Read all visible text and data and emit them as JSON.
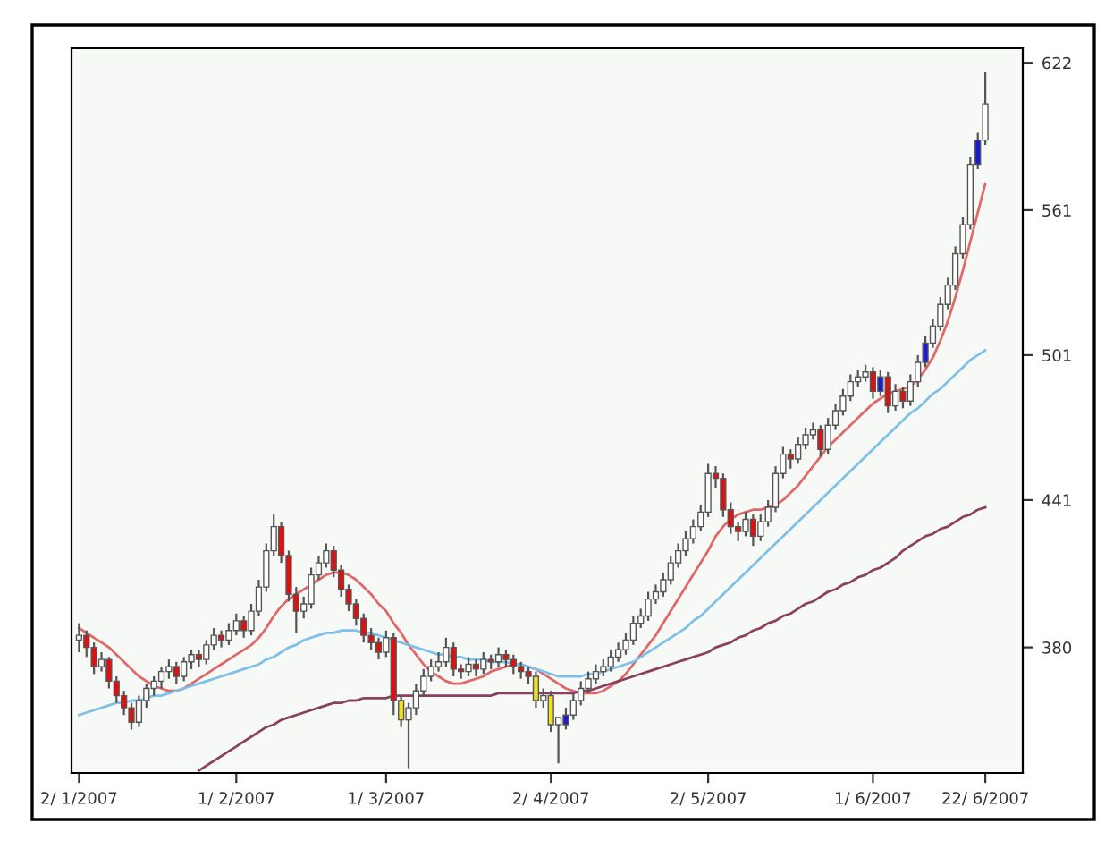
{
  "chart_data": {
    "type": "candlestick",
    "categories": [
      "2/ 1/2007",
      null,
      null,
      null,
      null,
      null,
      null,
      null,
      null,
      null,
      null,
      null,
      null,
      null,
      null,
      null,
      null,
      null,
      null,
      null,
      null,
      "1/ 2/2007",
      null,
      null,
      null,
      null,
      null,
      null,
      null,
      null,
      null,
      null,
      null,
      null,
      null,
      null,
      null,
      null,
      null,
      null,
      null,
      "1/ 3/2007",
      null,
      null,
      null,
      null,
      null,
      null,
      null,
      null,
      null,
      null,
      null,
      null,
      null,
      null,
      null,
      null,
      null,
      null,
      null,
      null,
      null,
      "2/ 4/2007",
      null,
      null,
      null,
      null,
      null,
      null,
      null,
      null,
      null,
      null,
      null,
      null,
      null,
      null,
      null,
      null,
      null,
      null,
      null,
      null,
      "2/ 5/2007",
      null,
      null,
      null,
      null,
      null,
      null,
      null,
      null,
      null,
      null,
      null,
      null,
      null,
      null,
      null,
      null,
      null,
      null,
      null,
      null,
      null,
      "1/ 6/2007",
      null,
      null,
      null,
      null,
      null,
      null,
      null,
      null,
      null,
      null,
      null,
      null,
      null,
      null,
      "22/ 6/2007"
    ],
    "ohlc": [
      [
        383,
        390,
        378,
        385
      ],
      [
        385,
        387,
        376,
        380
      ],
      [
        380,
        382,
        369,
        372
      ],
      [
        372,
        378,
        370,
        375
      ],
      [
        375,
        376,
        363,
        366
      ],
      [
        366,
        368,
        357,
        360
      ],
      [
        360,
        362,
        352,
        355
      ],
      [
        355,
        357,
        346,
        349
      ],
      [
        349,
        360,
        347,
        358
      ],
      [
        358,
        365,
        355,
        363
      ],
      [
        363,
        368,
        360,
        366
      ],
      [
        366,
        372,
        363,
        370
      ],
      [
        370,
        375,
        367,
        372
      ],
      [
        372,
        374,
        365,
        368
      ],
      [
        368,
        376,
        366,
        374
      ],
      [
        374,
        379,
        371,
        377
      ],
      [
        377,
        379,
        372,
        375
      ],
      [
        375,
        383,
        373,
        381
      ],
      [
        381,
        388,
        379,
        385
      ],
      [
        385,
        387,
        380,
        383
      ],
      [
        383,
        390,
        381,
        387
      ],
      [
        387,
        394,
        385,
        391
      ],
      [
        391,
        393,
        384,
        387
      ],
      [
        387,
        398,
        385,
        395
      ],
      [
        395,
        408,
        393,
        405
      ],
      [
        405,
        423,
        403,
        420
      ],
      [
        420,
        435,
        418,
        430
      ],
      [
        430,
        432,
        415,
        418
      ],
      [
        418,
        420,
        399,
        402
      ],
      [
        402,
        405,
        386,
        395
      ],
      [
        395,
        401,
        392,
        398
      ],
      [
        398,
        413,
        396,
        410
      ],
      [
        410,
        418,
        408,
        415
      ],
      [
        415,
        423,
        413,
        420
      ],
      [
        420,
        422,
        409,
        412
      ],
      [
        412,
        414,
        401,
        404
      ],
      [
        404,
        406,
        395,
        398
      ],
      [
        398,
        400,
        389,
        392
      ],
      [
        392,
        394,
        382,
        385
      ],
      [
        385,
        388,
        379,
        382
      ],
      [
        382,
        384,
        375,
        378
      ],
      [
        378,
        387,
        376,
        384
      ],
      [
        384,
        386,
        352,
        358
      ],
      [
        358,
        360,
        347,
        350
      ],
      [
        350,
        357,
        330,
        355
      ],
      [
        355,
        365,
        352,
        362
      ],
      [
        362,
        371,
        360,
        368
      ],
      [
        368,
        375,
        366,
        372
      ],
      [
        372,
        378,
        370,
        374
      ],
      [
        374,
        384,
        372,
        380
      ],
      [
        380,
        382,
        368,
        371
      ],
      [
        371,
        373,
        367,
        370
      ],
      [
        370,
        376,
        368,
        373
      ],
      [
        373,
        375,
        368,
        371
      ],
      [
        371,
        378,
        369,
        375
      ],
      [
        375,
        377,
        371,
        374
      ],
      [
        374,
        380,
        372,
        377
      ],
      [
        377,
        379,
        372,
        375
      ],
      [
        375,
        377,
        369,
        372
      ],
      [
        372,
        374,
        367,
        370
      ],
      [
        370,
        372,
        365,
        368
      ],
      [
        368,
        370,
        355,
        358
      ],
      [
        358,
        363,
        355,
        360
      ],
      [
        360,
        362,
        345,
        348
      ],
      [
        348,
        351,
        332,
        351
      ],
      [
        348,
        355,
        346,
        352
      ],
      [
        352,
        361,
        350,
        358
      ],
      [
        358,
        366,
        356,
        363
      ],
      [
        363,
        370,
        361,
        367
      ],
      [
        367,
        373,
        365,
        370
      ],
      [
        370,
        375,
        368,
        372
      ],
      [
        372,
        379,
        370,
        376
      ],
      [
        376,
        382,
        374,
        379
      ],
      [
        379,
        386,
        377,
        383
      ],
      [
        383,
        393,
        381,
        390
      ],
      [
        390,
        396,
        388,
        393
      ],
      [
        393,
        403,
        391,
        400
      ],
      [
        400,
        406,
        398,
        403
      ],
      [
        403,
        411,
        401,
        408
      ],
      [
        408,
        418,
        406,
        415
      ],
      [
        415,
        423,
        413,
        420
      ],
      [
        420,
        428,
        418,
        425
      ],
      [
        425,
        433,
        423,
        430
      ],
      [
        430,
        439,
        428,
        436
      ],
      [
        436,
        456,
        434,
        452
      ],
      [
        452,
        455,
        446,
        450
      ],
      [
        450,
        452,
        434,
        437
      ],
      [
        437,
        440,
        427,
        430
      ],
      [
        430,
        432,
        424,
        428
      ],
      [
        428,
        436,
        426,
        433
      ],
      [
        433,
        435,
        422,
        426
      ],
      [
        426,
        435,
        424,
        432
      ],
      [
        432,
        441,
        430,
        438
      ],
      [
        438,
        455,
        436,
        452
      ],
      [
        452,
        463,
        450,
        460
      ],
      [
        460,
        462,
        454,
        458
      ],
      [
        458,
        467,
        456,
        464
      ],
      [
        464,
        471,
        462,
        468
      ],
      [
        468,
        473,
        466,
        470
      ],
      [
        470,
        472,
        459,
        462
      ],
      [
        462,
        475,
        460,
        472
      ],
      [
        472,
        481,
        470,
        478
      ],
      [
        478,
        487,
        476,
        484
      ],
      [
        484,
        493,
        482,
        490
      ],
      [
        490,
        495,
        488,
        492
      ],
      [
        492,
        497,
        490,
        494
      ],
      [
        494,
        496,
        483,
        486
      ],
      [
        486,
        495,
        484,
        492
      ],
      [
        492,
        494,
        477,
        480
      ],
      [
        480,
        489,
        478,
        486
      ],
      [
        486,
        488,
        479,
        482
      ],
      [
        482,
        493,
        480,
        490
      ],
      [
        490,
        501,
        488,
        498
      ],
      [
        498,
        509,
        496,
        506
      ],
      [
        506,
        516,
        504,
        513
      ],
      [
        513,
        525,
        511,
        522
      ],
      [
        522,
        533,
        520,
        530
      ],
      [
        530,
        546,
        528,
        543
      ],
      [
        543,
        558,
        541,
        555
      ],
      [
        555,
        583,
        553,
        580
      ],
      [
        580,
        593,
        578,
        590
      ],
      [
        590,
        618,
        588,
        605
      ]
    ],
    "colors": [
      "#ffffff",
      "#e01010",
      "#e01010",
      "#ffffff",
      "#e01010",
      "#e01010",
      "#e01010",
      "#e01010",
      "#ffffff",
      "#ffffff",
      "#ffffff",
      "#ffffff",
      "#ffffff",
      "#e01010",
      "#ffffff",
      "#ffffff",
      "#e01010",
      "#ffffff",
      "#ffffff",
      "#e01010",
      "#ffffff",
      "#ffffff",
      "#e01010",
      "#ffffff",
      "#ffffff",
      "#ffffff",
      "#ffffff",
      "#e01010",
      "#e01010",
      "#e01010",
      "#ffffff",
      "#ffffff",
      "#ffffff",
      "#ffffff",
      "#e01010",
      "#e01010",
      "#e01010",
      "#e01010",
      "#e01010",
      "#e01010",
      "#e01010",
      "#ffffff",
      "#e01010",
      "#f0e020",
      "#ffffff",
      "#ffffff",
      "#ffffff",
      "#ffffff",
      "#ffffff",
      "#ffffff",
      "#e01010",
      "#e01010",
      "#ffffff",
      "#e01010",
      "#ffffff",
      "#e01010",
      "#ffffff",
      "#e01010",
      "#e01010",
      "#e01010",
      "#e01010",
      "#f0e020",
      "#ffffff",
      "#f0e020",
      "#ffffff",
      "#1a1ad0",
      "#ffffff",
      "#ffffff",
      "#ffffff",
      "#ffffff",
      "#ffffff",
      "#ffffff",
      "#ffffff",
      "#ffffff",
      "#ffffff",
      "#ffffff",
      "#ffffff",
      "#ffffff",
      "#ffffff",
      "#ffffff",
      "#ffffff",
      "#ffffff",
      "#ffffff",
      "#ffffff",
      "#ffffff",
      "#e01010",
      "#e01010",
      "#e01010",
      "#e01010",
      "#ffffff",
      "#e01010",
      "#ffffff",
      "#ffffff",
      "#ffffff",
      "#ffffff",
      "#e01010",
      "#ffffff",
      "#ffffff",
      "#ffffff",
      "#e01010",
      "#ffffff",
      "#ffffff",
      "#ffffff",
      "#ffffff",
      "#ffffff",
      "#ffffff",
      "#e01010",
      "#1a1ad0",
      "#e01010",
      "#ffffff",
      "#e01010",
      "#ffffff",
      "#ffffff",
      "#1a1ad0",
      "#ffffff",
      "#ffffff",
      "#ffffff",
      "#ffffff",
      "#ffffff",
      "#ffffff",
      "#1a1ad0",
      "#ffffff"
    ],
    "series": [
      {
        "type": "line",
        "color": "#e06868",
        "values": [
          388,
          386,
          384,
          382,
          380,
          377,
          374,
          371,
          368,
          366,
          364,
          363,
          362,
          362,
          363,
          365,
          367,
          369,
          371,
          373,
          375,
          377,
          379,
          381,
          384,
          388,
          393,
          397,
          400,
          402,
          404,
          406,
          408,
          410,
          411,
          411,
          410,
          408,
          405,
          402,
          398,
          395,
          390,
          386,
          381,
          377,
          373,
          370,
          368,
          366,
          365,
          365,
          366,
          367,
          368,
          370,
          371,
          372,
          373,
          373,
          372,
          371,
          369,
          367,
          365,
          363,
          362,
          361,
          361,
          361,
          362,
          364,
          366,
          369,
          373,
          377,
          381,
          385,
          390,
          395,
          400,
          405,
          410,
          415,
          420,
          426,
          430,
          433,
          435,
          436,
          437,
          437,
          438,
          439,
          441,
          444,
          447,
          451,
          455,
          459,
          463,
          466,
          469,
          472,
          475,
          478,
          481,
          483,
          485,
          486,
          487,
          488,
          491,
          495,
          500,
          507,
          515,
          525,
          536,
          548,
          560,
          572
        ]
      },
      {
        "type": "line",
        "color": "#7ec0e8",
        "values": [
          352,
          353,
          354,
          355,
          356,
          357,
          357,
          358,
          358,
          359,
          360,
          360,
          361,
          362,
          363,
          364,
          365,
          366,
          367,
          368,
          369,
          370,
          371,
          372,
          373,
          375,
          376,
          378,
          380,
          381,
          383,
          384,
          385,
          386,
          386,
          387,
          387,
          387,
          386,
          386,
          385,
          384,
          383,
          382,
          381,
          380,
          379,
          378,
          377,
          377,
          376,
          376,
          375,
          375,
          375,
          374,
          374,
          374,
          373,
          373,
          372,
          371,
          370,
          369,
          368,
          368,
          368,
          368,
          369,
          369,
          370,
          371,
          372,
          373,
          374,
          376,
          378,
          380,
          382,
          384,
          386,
          388,
          391,
          393,
          396,
          399,
          402,
          405,
          408,
          411,
          414,
          417,
          420,
          423,
          426,
          429,
          432,
          435,
          438,
          441,
          444,
          447,
          450,
          453,
          456,
          459,
          462,
          465,
          468,
          471,
          474,
          477,
          479,
          482,
          485,
          487,
          490,
          493,
          496,
          499,
          501,
          503
        ]
      },
      {
        "type": "line",
        "color": "#8a4060",
        "values": [
          null,
          null,
          null,
          null,
          null,
          null,
          null,
          null,
          null,
          null,
          null,
          null,
          null,
          null,
          null,
          null,
          329,
          331,
          333,
          335,
          337,
          339,
          341,
          343,
          345,
          347,
          348,
          350,
          351,
          352,
          353,
          354,
          355,
          356,
          357,
          357,
          358,
          358,
          359,
          359,
          359,
          359,
          360,
          360,
          360,
          360,
          360,
          360,
          360,
          360,
          360,
          360,
          360,
          360,
          360,
          360,
          361,
          361,
          361,
          361,
          361,
          361,
          361,
          361,
          361,
          361,
          361,
          362,
          362,
          363,
          364,
          365,
          366,
          367,
          368,
          369,
          370,
          371,
          372,
          373,
          374,
          375,
          376,
          377,
          378,
          380,
          381,
          382,
          384,
          385,
          387,
          388,
          390,
          391,
          393,
          394,
          396,
          398,
          399,
          401,
          403,
          404,
          406,
          407,
          409,
          410,
          412,
          413,
          415,
          417,
          420,
          422,
          424,
          426,
          427,
          429,
          430,
          432,
          434,
          435,
          437,
          438
        ]
      }
    ],
    "ylim": [
      328,
      628
    ],
    "yticks": [
      380,
      441,
      501,
      561,
      622
    ],
    "grid": false,
    "legend": false
  }
}
